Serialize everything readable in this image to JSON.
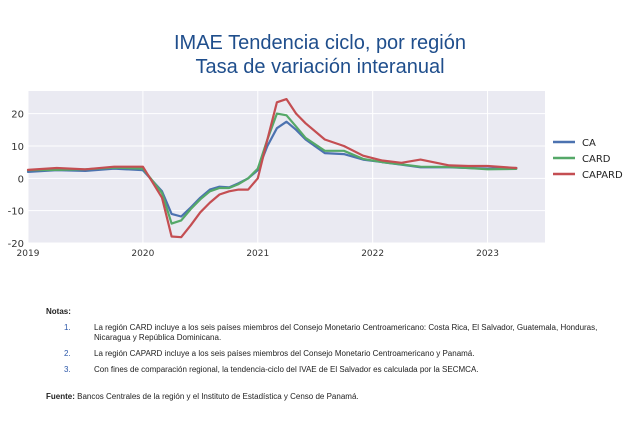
{
  "title_line1": "IMAE Tendencia ciclo, por región",
  "title_line2": "Tasa de variación interanual",
  "chart_data": {
    "type": "line",
    "title": "IMAE Tendencia ciclo, por región / Tasa de variación interanual",
    "xlabel": "",
    "ylabel": "",
    "ylim": [
      -20,
      27
    ],
    "yticks": [
      -20,
      -10,
      0,
      10,
      20
    ],
    "xlim": [
      "2019-01",
      "2023-07"
    ],
    "xticks": [
      "2019",
      "2020",
      "2021",
      "2022",
      "2023"
    ],
    "grid": true,
    "legend": "right",
    "x": [
      "2019-01",
      "2019-04",
      "2019-07",
      "2019-10",
      "2020-01",
      "2020-03",
      "2020-04",
      "2020-05",
      "2020-06",
      "2020-07",
      "2020-08",
      "2020-09",
      "2020-10",
      "2020-11",
      "2020-12",
      "2021-01",
      "2021-02",
      "2021-03",
      "2021-04",
      "2021-05",
      "2021-06",
      "2021-08",
      "2021-10",
      "2021-12",
      "2022-02",
      "2022-04",
      "2022-06",
      "2022-09",
      "2022-11",
      "2023-01",
      "2023-04"
    ],
    "series": [
      {
        "name": "CA",
        "color": "#4c72b0",
        "values": [
          2.0,
          2.5,
          2.3,
          3.0,
          2.5,
          -4.0,
          -11.0,
          -11.8,
          -9.0,
          -6.0,
          -3.5,
          -2.6,
          -2.8,
          -1.5,
          0.0,
          2.5,
          10.0,
          15.5,
          17.5,
          15.0,
          12.0,
          7.8,
          7.5,
          5.8,
          5.0,
          4.2,
          3.4,
          3.4,
          3.2,
          3.0,
          3.2
        ]
      },
      {
        "name": "CARD",
        "color": "#55a868",
        "values": [
          2.5,
          2.6,
          2.8,
          3.3,
          3.0,
          -4.5,
          -14.0,
          -13.0,
          -9.5,
          -6.5,
          -4.0,
          -3.0,
          -3.0,
          -1.8,
          0.0,
          3.0,
          12.0,
          20.0,
          19.5,
          16.0,
          12.5,
          8.5,
          8.5,
          6.0,
          5.0,
          4.3,
          3.6,
          3.5,
          3.2,
          2.8,
          2.9
        ]
      },
      {
        "name": "CAPARD",
        "color": "#c44e52",
        "values": [
          2.6,
          3.2,
          2.8,
          3.6,
          3.6,
          -6.0,
          -18.0,
          -18.2,
          -14.5,
          -10.5,
          -7.5,
          -5.0,
          -4.0,
          -3.5,
          -3.5,
          0.0,
          12.0,
          23.5,
          24.5,
          20.0,
          17.0,
          12.0,
          10.0,
          7.0,
          5.5,
          4.8,
          5.8,
          4.0,
          3.8,
          3.8,
          3.2
        ]
      }
    ]
  },
  "notes": {
    "heading": "Notas:",
    "items": [
      {
        "num": "1.",
        "text": "La región CARD incluye a los seis países miembros del Consejo Monetario Centroamericano: Costa Rica, El Salvador, Guatemala, Honduras, Nicaragua y República Dominicana."
      },
      {
        "num": "2.",
        "text": "La región CAPARD incluye a los seis países miembros del Consejo Monetario Centroamericano y Panamá."
      },
      {
        "num": "3.",
        "text": "Con fines de comparación regional, la tendencia-ciclo del IVAE de El Salvador es calculada por la SECMCA."
      }
    ]
  },
  "source": {
    "label": "Fuente:",
    "text": "Bancos Centrales de la región y el Instituto de Estadística y Censo de Panamá."
  }
}
